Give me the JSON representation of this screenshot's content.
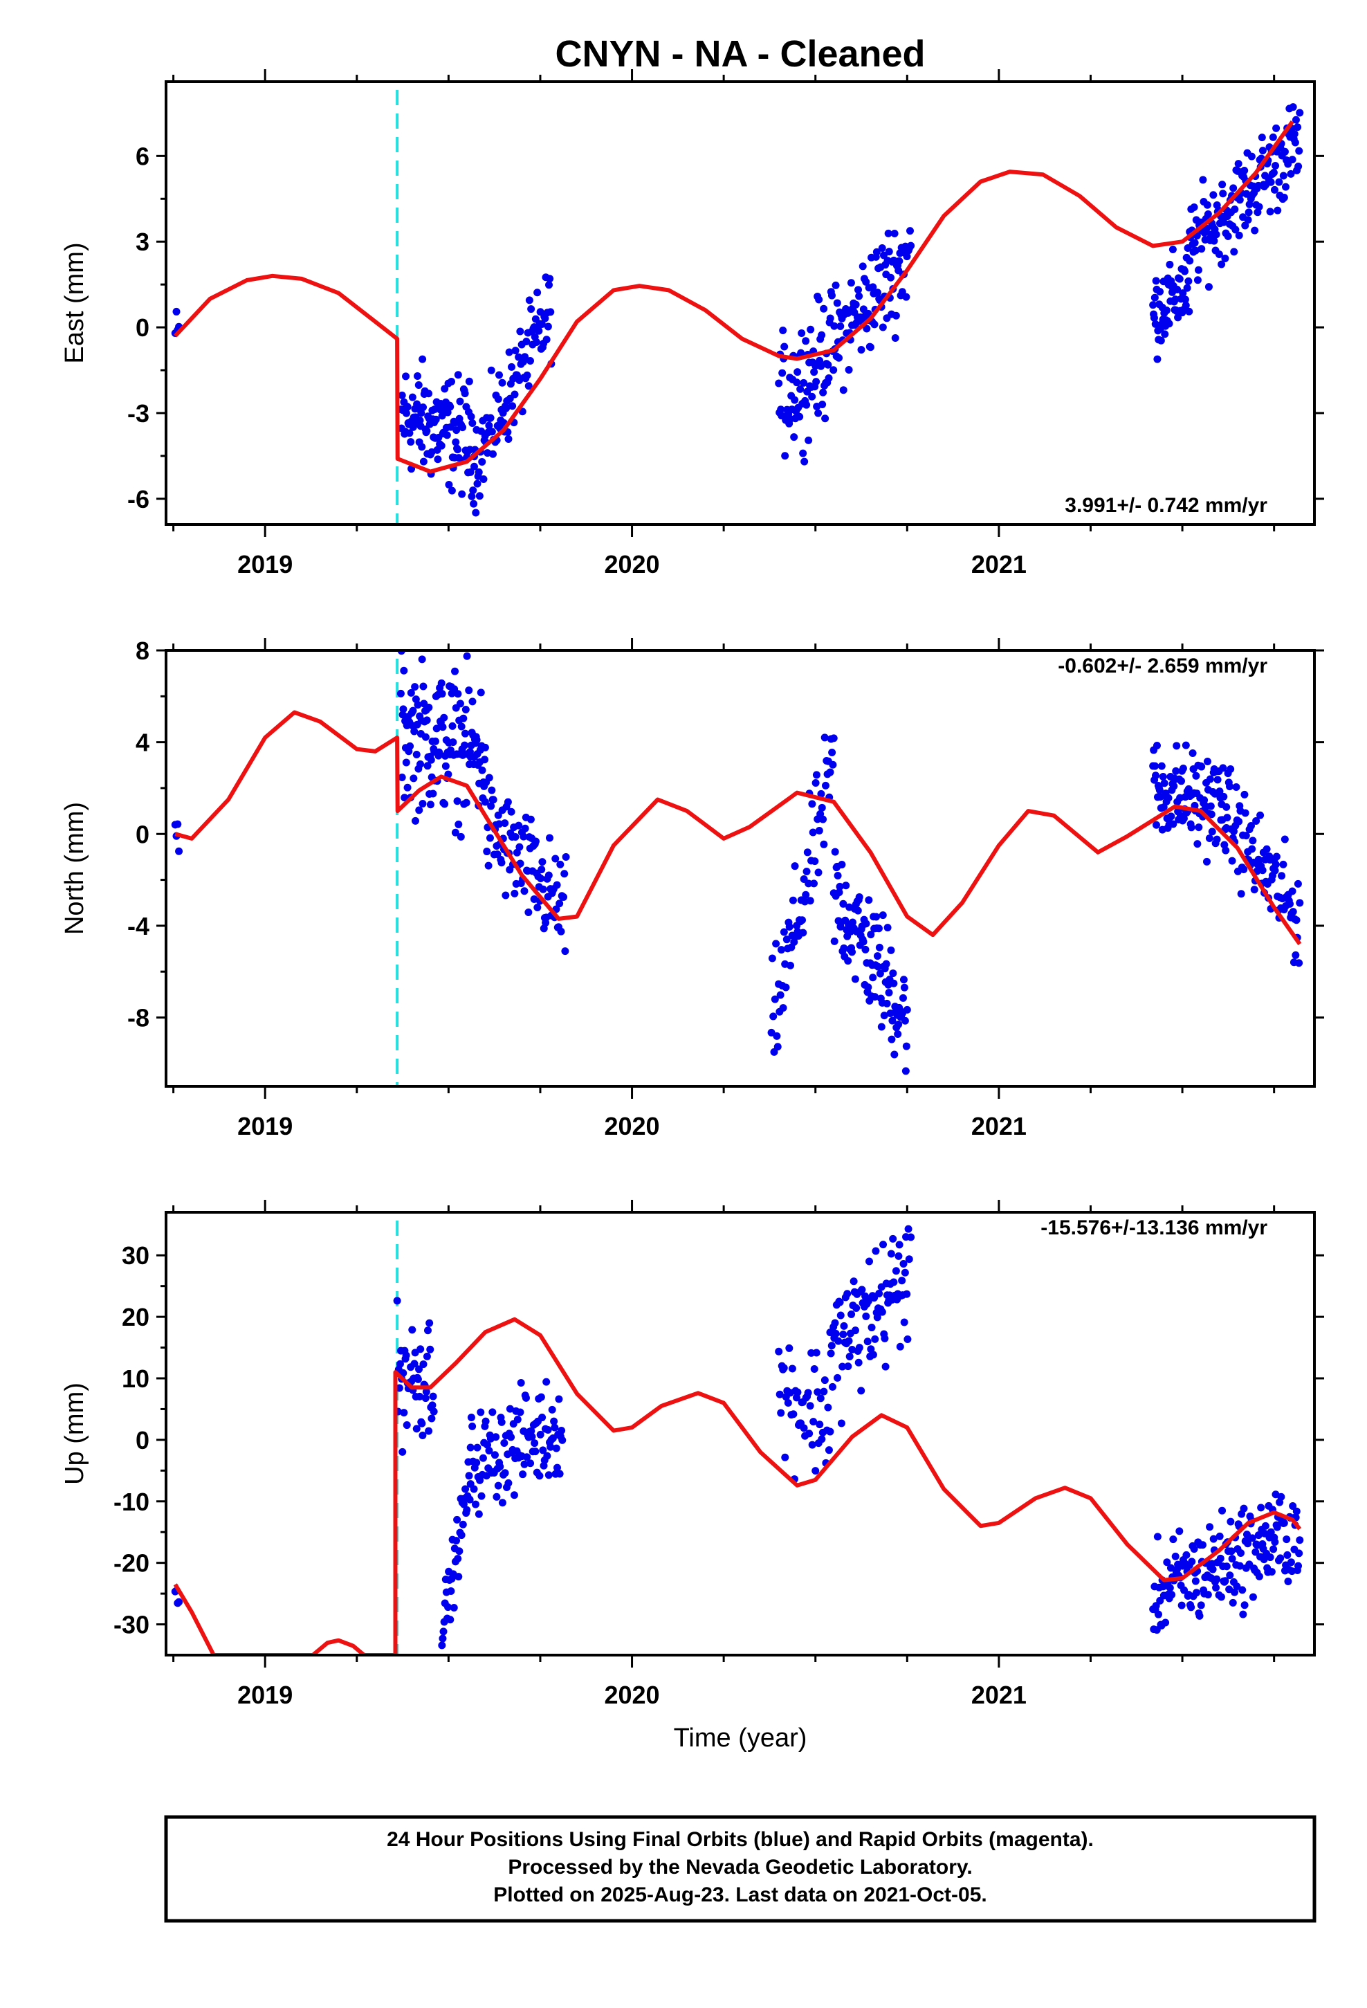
{
  "title": "CNYN  - NA - Cleaned",
  "chart_data": [
    {
      "type": "scatter",
      "panel": "east",
      "ylabel": "East (mm)",
      "ylim": [
        -6.9,
        8.6
      ],
      "yticks": [
        -6,
        -3,
        0,
        3,
        6
      ],
      "xlim": [
        2018.73,
        2021.86
      ],
      "xticks": [
        2019,
        2020,
        2021
      ],
      "rate_label": "3.991+/- 0.742 mm/yr",
      "offset_epoch": 2019.36,
      "model_line": {
        "name": "model",
        "color": "#ee1111",
        "points": [
          [
            2018.755,
            -0.3
          ],
          [
            2018.85,
            1.0
          ],
          [
            2018.95,
            1.65
          ],
          [
            2019.02,
            1.8
          ],
          [
            2019.1,
            1.7
          ],
          [
            2019.2,
            1.2
          ],
          [
            2019.3,
            0.2
          ],
          [
            2019.36,
            -0.4
          ],
          [
            2019.361,
            -4.6
          ],
          [
            2019.45,
            -5.05
          ],
          [
            2019.55,
            -4.7
          ],
          [
            2019.65,
            -3.6
          ],
          [
            2019.75,
            -1.8
          ],
          [
            2019.85,
            0.2
          ],
          [
            2019.95,
            1.3
          ],
          [
            2020.02,
            1.45
          ],
          [
            2020.1,
            1.3
          ],
          [
            2020.2,
            0.6
          ],
          [
            2020.3,
            -0.4
          ],
          [
            2020.4,
            -1.0
          ],
          [
            2020.45,
            -1.1
          ],
          [
            2020.55,
            -0.8
          ],
          [
            2020.65,
            0.3
          ],
          [
            2020.75,
            2.0
          ],
          [
            2020.85,
            3.9
          ],
          [
            2020.95,
            5.1
          ],
          [
            2021.03,
            5.45
          ],
          [
            2021.12,
            5.35
          ],
          [
            2021.22,
            4.6
          ],
          [
            2021.32,
            3.5
          ],
          [
            2021.42,
            2.85
          ],
          [
            2021.5,
            3.0
          ],
          [
            2021.6,
            4.0
          ],
          [
            2021.7,
            5.4
          ],
          [
            2021.8,
            7.2
          ]
        ]
      },
      "point_segments": [
        {
          "x_start": 2018.755,
          "x_end": 2018.765,
          "y_start": -0.3,
          "y_end": -0.4,
          "count": 4,
          "spread": 0.8
        },
        {
          "x_start": 2019.37,
          "x_end": 2019.57,
          "y_start": -3.0,
          "y_end": -4.0,
          "count": 120,
          "spread": 1.5
        },
        {
          "x_start": 2019.57,
          "x_end": 2019.78,
          "y_start": -4.8,
          "y_end": 0.6,
          "count": 100,
          "spread": 1.2
        },
        {
          "x_start": 2020.4,
          "x_end": 2020.53,
          "y_start": -2.6,
          "y_end": -1.0,
          "count": 70,
          "spread": 1.6
        },
        {
          "x_start": 2020.53,
          "x_end": 2020.76,
          "y_start": -0.8,
          "y_end": 2.6,
          "count": 110,
          "spread": 1.4
        },
        {
          "x_start": 2021.42,
          "x_end": 2021.52,
          "y_start": 0.5,
          "y_end": 1.5,
          "count": 60,
          "spread": 1.1
        },
        {
          "x_start": 2021.52,
          "x_end": 2021.82,
          "y_start": 2.8,
          "y_end": 6.5,
          "count": 150,
          "spread": 1.2
        }
      ]
    },
    {
      "type": "scatter",
      "panel": "north",
      "ylabel": "North (mm)",
      "ylim": [
        -11.0,
        8.0
      ],
      "yticks": [
        -8,
        -4,
        0,
        4,
        8
      ],
      "xlim": [
        2018.73,
        2021.86
      ],
      "xticks": [
        2019,
        2020,
        2021
      ],
      "rate_label": "-0.602+/- 2.659 mm/yr",
      "offset_epoch": 2019.36,
      "model_line": {
        "name": "model",
        "color": "#ee1111",
        "points": [
          [
            2018.755,
            0.0
          ],
          [
            2018.8,
            -0.2
          ],
          [
            2018.9,
            1.5
          ],
          [
            2019.0,
            4.2
          ],
          [
            2019.08,
            5.3
          ],
          [
            2019.15,
            4.9
          ],
          [
            2019.25,
            3.7
          ],
          [
            2019.3,
            3.6
          ],
          [
            2019.36,
            4.2
          ],
          [
            2019.361,
            1.0
          ],
          [
            2019.42,
            1.9
          ],
          [
            2019.48,
            2.5
          ],
          [
            2019.55,
            2.1
          ],
          [
            2019.6,
            0.8
          ],
          [
            2019.7,
            -1.8
          ],
          [
            2019.8,
            -3.7
          ],
          [
            2019.85,
            -3.6
          ],
          [
            2019.95,
            -0.5
          ],
          [
            2020.07,
            1.5
          ],
          [
            2020.15,
            1.0
          ],
          [
            2020.25,
            -0.2
          ],
          [
            2020.32,
            0.3
          ],
          [
            2020.45,
            1.8
          ],
          [
            2020.55,
            1.4
          ],
          [
            2020.65,
            -0.8
          ],
          [
            2020.75,
            -3.6
          ],
          [
            2020.82,
            -4.4
          ],
          [
            2020.9,
            -3.0
          ],
          [
            2021.0,
            -0.5
          ],
          [
            2021.08,
            1.0
          ],
          [
            2021.15,
            0.8
          ],
          [
            2021.27,
            -0.8
          ],
          [
            2021.35,
            -0.1
          ],
          [
            2021.48,
            1.2
          ],
          [
            2021.55,
            1.0
          ],
          [
            2021.65,
            -0.6
          ],
          [
            2021.75,
            -3.2
          ],
          [
            2021.82,
            -4.8
          ]
        ]
      },
      "point_segments": [
        {
          "x_start": 2018.755,
          "x_end": 2018.765,
          "y_start": 0.2,
          "y_end": -0.2,
          "count": 4,
          "spread": 0.6
        },
        {
          "x_start": 2019.37,
          "x_end": 2019.6,
          "y_start": 4.5,
          "y_end": 3.5,
          "count": 140,
          "spread": 2.4
        },
        {
          "x_start": 2019.6,
          "x_end": 2019.82,
          "y_start": 0.5,
          "y_end": -3.5,
          "count": 100,
          "spread": 1.8
        },
        {
          "x_start": 2020.38,
          "x_end": 2020.55,
          "y_start": -8.5,
          "y_end": 3.0,
          "count": 70,
          "spread": 2.0
        },
        {
          "x_start": 2020.55,
          "x_end": 2020.75,
          "y_start": -2.5,
          "y_end": -8.0,
          "count": 110,
          "spread": 2.0
        },
        {
          "x_start": 2021.42,
          "x_end": 2021.62,
          "y_start": 2.0,
          "y_end": 1.2,
          "count": 110,
          "spread": 1.6
        },
        {
          "x_start": 2021.62,
          "x_end": 2021.82,
          "y_start": 0.8,
          "y_end": -3.8,
          "count": 90,
          "spread": 1.6
        }
      ]
    },
    {
      "type": "scatter",
      "panel": "up",
      "ylabel": "Up (mm)",
      "ylim": [
        -35.0,
        37.0
      ],
      "yticks": [
        -30,
        -20,
        -10,
        0,
        10,
        20,
        30
      ],
      "xlim": [
        2018.73,
        2021.86
      ],
      "xticks": [
        2019,
        2020,
        2021
      ],
      "xlabel": "Time (year)",
      "rate_label": "-15.576+/-13.136 mm/yr",
      "offset_epoch": 2019.36,
      "model_line": {
        "name": "model",
        "color": "#ee1111",
        "points": [
          [
            2018.755,
            -23.5
          ],
          [
            2018.8,
            -28.0
          ],
          [
            2018.86,
            -35.0
          ],
          [
            2019.13,
            -35.0
          ],
          [
            2019.17,
            -33.0
          ],
          [
            2019.2,
            -32.6
          ],
          [
            2019.24,
            -33.5
          ],
          [
            2019.27,
            -35.0
          ],
          [
            2019.355,
            -35.0
          ],
          [
            2019.355,
            11.0
          ],
          [
            2019.4,
            8.5
          ],
          [
            2019.45,
            8.5
          ],
          [
            2019.52,
            12.5
          ],
          [
            2019.6,
            17.5
          ],
          [
            2019.68,
            19.6
          ],
          [
            2019.75,
            17.0
          ],
          [
            2019.85,
            7.5
          ],
          [
            2019.95,
            1.5
          ],
          [
            2020.0,
            2.0
          ],
          [
            2020.08,
            5.5
          ],
          [
            2020.18,
            7.6
          ],
          [
            2020.25,
            6.0
          ],
          [
            2020.35,
            -2.0
          ],
          [
            2020.45,
            -7.4
          ],
          [
            2020.5,
            -6.5
          ],
          [
            2020.6,
            0.5
          ],
          [
            2020.68,
            4.0
          ],
          [
            2020.75,
            2.0
          ],
          [
            2020.85,
            -8.0
          ],
          [
            2020.95,
            -14.0
          ],
          [
            2021.0,
            -13.5
          ],
          [
            2021.1,
            -9.5
          ],
          [
            2021.18,
            -7.8
          ],
          [
            2021.25,
            -9.5
          ],
          [
            2021.35,
            -17.0
          ],
          [
            2021.45,
            -22.8
          ],
          [
            2021.5,
            -22.5
          ],
          [
            2021.6,
            -18.0
          ],
          [
            2021.68,
            -13.5
          ],
          [
            2021.75,
            -11.8
          ],
          [
            2021.8,
            -13.0
          ],
          [
            2021.82,
            -14.5
          ]
        ]
      },
      "point_segments": [
        {
          "x_start": 2018.755,
          "x_end": 2018.765,
          "y_start": -24.0,
          "y_end": -26.0,
          "count": 4,
          "spread": 2.0
        },
        {
          "x_start": 2019.36,
          "x_end": 2019.46,
          "y_start": 10.0,
          "y_end": 11.0,
          "count": 50,
          "spread": 8.0
        },
        {
          "x_start": 2019.48,
          "x_end": 2019.56,
          "y_start": -32.0,
          "y_end": -6.0,
          "count": 40,
          "spread": 4.0
        },
        {
          "x_start": 2019.56,
          "x_end": 2019.81,
          "y_start": -4.0,
          "y_end": 2.5,
          "count": 110,
          "spread": 6.0
        },
        {
          "x_start": 2020.4,
          "x_end": 2020.54,
          "y_start": 8.0,
          "y_end": 4.0,
          "count": 50,
          "spread": 8.0
        },
        {
          "x_start": 2020.54,
          "x_end": 2020.76,
          "y_start": 14.0,
          "y_end": 27.0,
          "count": 100,
          "spread": 8.0
        },
        {
          "x_start": 2021.42,
          "x_end": 2021.82,
          "y_start": -25.0,
          "y_end": -14.5,
          "count": 190,
          "spread": 6.0
        }
      ]
    }
  ],
  "footer": {
    "line1": "24 Hour Positions Using Final Orbits (blue) and Rapid Orbits (magenta).",
    "line2": "Processed by the Nevada Geodetic Laboratory.",
    "line3": "Plotted on 2025-Aug-23. Last data on 2021-Oct-05."
  },
  "colors": {
    "points": "#0000ee",
    "model": "#ee1111",
    "offset_line": "#22e0e0",
    "axes": "#000000"
  }
}
